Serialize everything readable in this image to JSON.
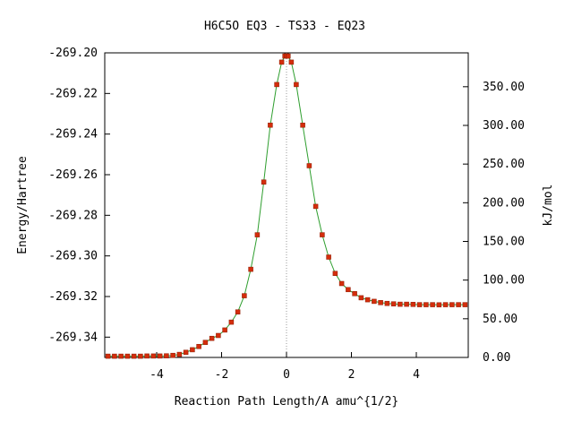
{
  "chart_data": {
    "type": "scatter",
    "title": "H6C5O    EQ3 - TS33 - EQ23",
    "xlabel": "Reaction Path Length/A amu^{1/2}",
    "ylabel": "Energy/Hartree",
    "y2label": "kJ/mol",
    "xlim": [
      -5.6,
      5.6
    ],
    "ylim": [
      -269.35,
      -269.2
    ],
    "y2lim": [
      0,
      393.8
    ],
    "x_ticks": [
      "-4",
      "-2",
      "0",
      "2",
      "4"
    ],
    "y_ticks": [
      "-269.20",
      "-269.22",
      "-269.24",
      "-269.26",
      "-269.28",
      "-269.30",
      "-269.32",
      "-269.34"
    ],
    "y2_ticks": [
      "0.00",
      "50.00",
      "100.00",
      "150.00",
      "200.00",
      "250.00",
      "300.00",
      "350.00"
    ],
    "grid": false,
    "ts_marker_x": 0,
    "series": [
      {
        "points": [
          [
            -5.5,
            -269.3494
          ],
          [
            -5.3,
            -269.3494
          ],
          [
            -5.1,
            -269.3494
          ],
          [
            -4.9,
            -269.3494
          ],
          [
            -4.7,
            -269.3494
          ],
          [
            -4.5,
            -269.3494
          ],
          [
            -4.3,
            -269.3493
          ],
          [
            -4.1,
            -269.3493
          ],
          [
            -3.9,
            -269.3493
          ],
          [
            -3.7,
            -269.3492
          ],
          [
            -3.5,
            -269.349
          ],
          [
            -3.3,
            -269.3485
          ],
          [
            -3.1,
            -269.3475
          ],
          [
            -2.9,
            -269.3462
          ],
          [
            -2.7,
            -269.3446
          ],
          [
            -2.5,
            -269.3426
          ],
          [
            -2.3,
            -269.3406
          ],
          [
            -2.1,
            -269.3392
          ],
          [
            -1.9,
            -269.3365
          ],
          [
            -1.7,
            -269.3326
          ],
          [
            -1.5,
            -269.3276
          ],
          [
            -1.3,
            -269.3196
          ],
          [
            -1.1,
            -269.3066
          ],
          [
            -0.9,
            -269.2896
          ],
          [
            -0.7,
            -269.2636
          ],
          [
            -0.5,
            -269.2356
          ],
          [
            -0.3,
            -269.2156
          ],
          [
            -0.15,
            -269.2046
          ],
          [
            -0.05,
            -269.2016
          ],
          [
            0.0,
            -269.2015
          ],
          [
            0.05,
            -269.2016
          ],
          [
            0.15,
            -269.2046
          ],
          [
            0.3,
            -269.2156
          ],
          [
            0.5,
            -269.2356
          ],
          [
            0.7,
            -269.2556
          ],
          [
            0.9,
            -269.2756
          ],
          [
            1.1,
            -269.2896
          ],
          [
            1.3,
            -269.3006
          ],
          [
            1.5,
            -269.3086
          ],
          [
            1.7,
            -269.3136
          ],
          [
            1.9,
            -269.3166
          ],
          [
            2.1,
            -269.3186
          ],
          [
            2.3,
            -269.3206
          ],
          [
            2.5,
            -269.3216
          ],
          [
            2.7,
            -269.3224
          ],
          [
            2.9,
            -269.323
          ],
          [
            3.1,
            -269.3234
          ],
          [
            3.3,
            -269.3236
          ],
          [
            3.5,
            -269.3238
          ],
          [
            3.7,
            -269.3238
          ],
          [
            3.9,
            -269.3239
          ],
          [
            4.1,
            -269.324
          ],
          [
            4.3,
            -269.324
          ],
          [
            4.5,
            -269.324
          ],
          [
            4.7,
            -269.3241
          ],
          [
            4.9,
            -269.324
          ],
          [
            5.1,
            -269.324
          ],
          [
            5.3,
            -269.324
          ],
          [
            5.5,
            -269.324
          ]
        ]
      }
    ]
  }
}
